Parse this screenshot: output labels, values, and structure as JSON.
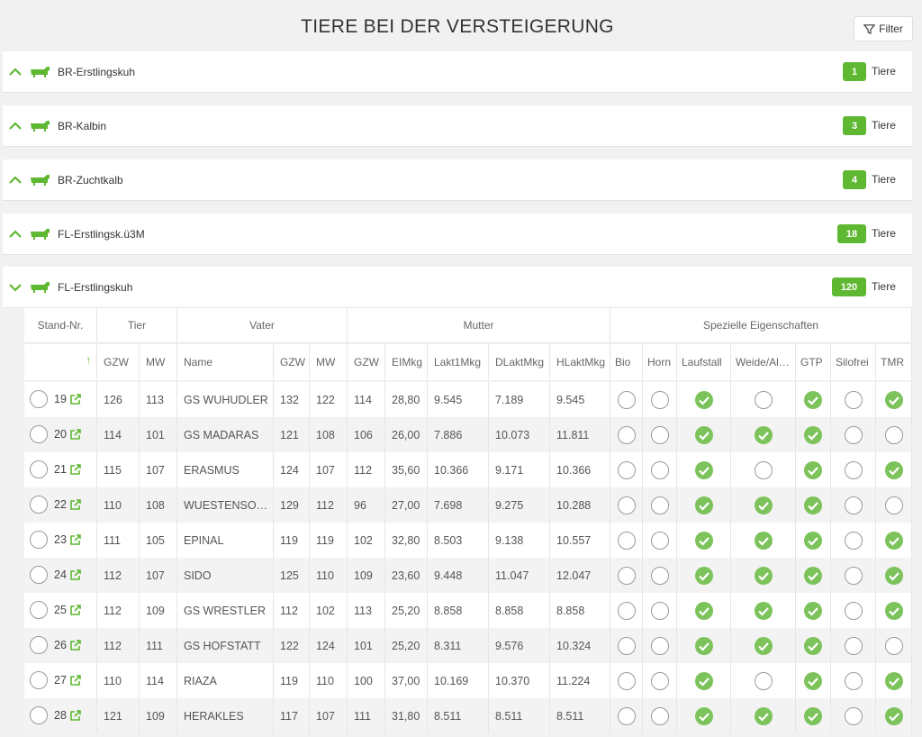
{
  "header": {
    "title": "TIERE BEI DER VERSTEIGERUNG",
    "filter": "Filter"
  },
  "count_unit": "Tiere",
  "groups": [
    {
      "name": "BR-Erstlingskuh",
      "count": 1,
      "expanded": false
    },
    {
      "name": "BR-Kalbin",
      "count": 3,
      "expanded": false
    },
    {
      "name": "BR-Zuchtkalb",
      "count": 4,
      "expanded": false
    },
    {
      "name": "FL-Erstlingsk.ü3M",
      "count": 18,
      "expanded": false
    },
    {
      "name": "FL-Erstlingskuh",
      "count": 120,
      "expanded": true
    }
  ],
  "table": {
    "group_headers": [
      "Stand-Nr.",
      "Tier",
      "Vater",
      "Mutter",
      "Spezielle Eigenschaften"
    ],
    "columns": [
      "GZW",
      "MW",
      "Name",
      "GZW",
      "MW",
      "GZW",
      "EIMkg",
      "Lakt1Mkg",
      "DLaktMkg",
      "HLaktMkg",
      "Bio",
      "Horn",
      "Laufstall",
      "Weide/Al…",
      "GTP",
      "Silofrei",
      "TMR"
    ],
    "rows": [
      [
        19,
        126,
        113,
        "GS WUHUDLER",
        132,
        122,
        114,
        "28,80",
        "9.545",
        "7.189",
        "9.545",
        false,
        false,
        true,
        false,
        true,
        false,
        true
      ],
      [
        20,
        114,
        101,
        "GS MADARAS",
        121,
        108,
        106,
        "26,00",
        "7.886",
        "10.073",
        "11.811",
        false,
        false,
        true,
        true,
        true,
        false,
        false
      ],
      [
        21,
        115,
        107,
        "ERASMUS",
        124,
        107,
        112,
        "35,60",
        "10.366",
        "9.171",
        "10.366",
        false,
        false,
        true,
        false,
        true,
        false,
        true
      ],
      [
        22,
        110,
        108,
        "WUESTENSO…",
        129,
        112,
        96,
        "27,00",
        "7.698",
        "9.275",
        "10.288",
        false,
        false,
        true,
        true,
        true,
        false,
        false
      ],
      [
        23,
        111,
        105,
        "EPINAL",
        119,
        119,
        102,
        "32,80",
        "8.503",
        "9.138",
        "10.557",
        false,
        false,
        true,
        true,
        true,
        false,
        true
      ],
      [
        24,
        112,
        107,
        "SIDO",
        125,
        110,
        109,
        "23,60",
        "9.448",
        "11.047",
        "12.047",
        false,
        false,
        true,
        true,
        true,
        false,
        true
      ],
      [
        25,
        112,
        109,
        "GS WRESTLER",
        112,
        102,
        113,
        "25,20",
        "8.858",
        "8.858",
        "8.858",
        false,
        false,
        true,
        true,
        true,
        false,
        true
      ],
      [
        26,
        112,
        111,
        "GS HOFSTATT",
        122,
        124,
        101,
        "25,20",
        "8.311",
        "9.576",
        "10.324",
        false,
        false,
        true,
        true,
        true,
        false,
        false
      ],
      [
        27,
        110,
        114,
        "RIAZA",
        119,
        110,
        100,
        "37,00",
        "10.169",
        "10.370",
        "11.224",
        false,
        false,
        true,
        false,
        true,
        false,
        true
      ],
      [
        28,
        121,
        109,
        "HERAKLES",
        117,
        107,
        111,
        "31,80",
        "8.511",
        "8.511",
        "8.511",
        false,
        false,
        true,
        true,
        true,
        false,
        true
      ]
    ]
  }
}
